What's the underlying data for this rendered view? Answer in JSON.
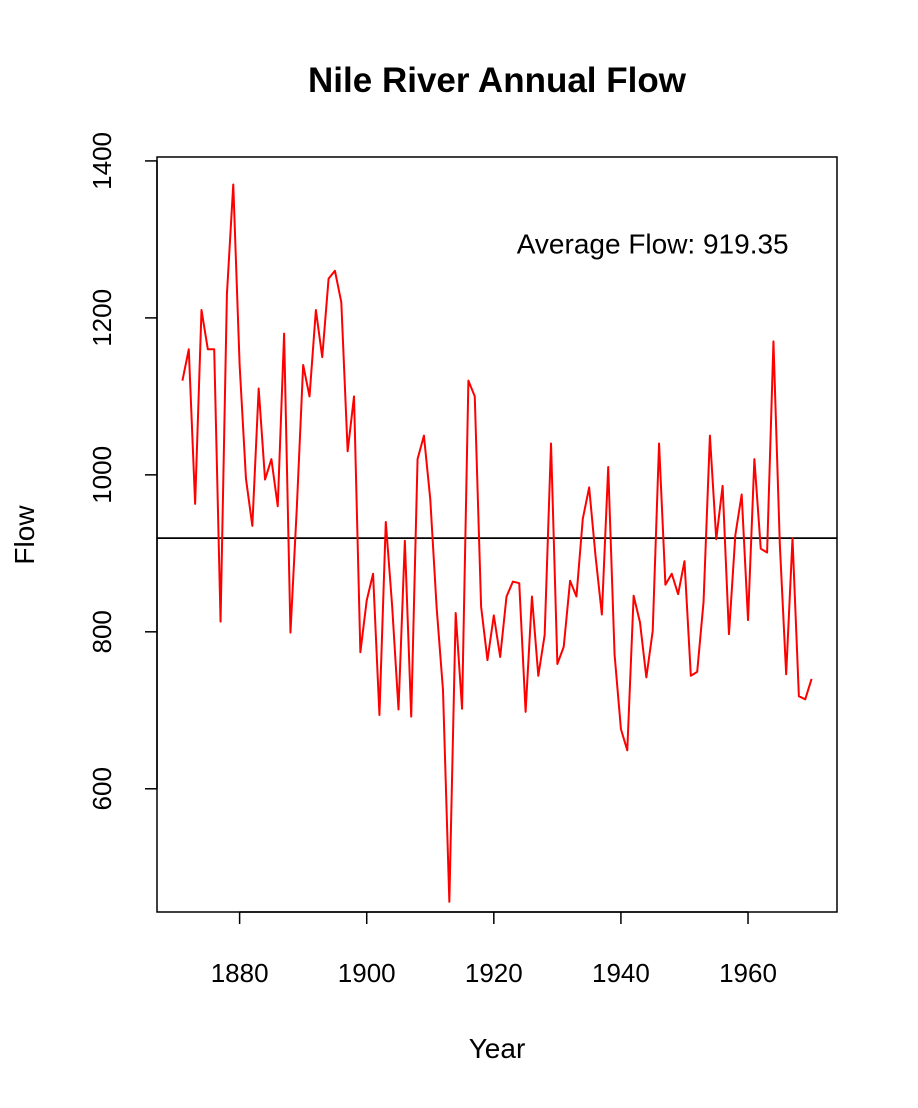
{
  "chart_data": {
    "type": "line",
    "title": "Nile River Annual Flow",
    "xlabel": "Year",
    "ylabel": "Flow",
    "xlim": [
      1867,
      1974
    ],
    "ylim": [
      443,
      1405
    ],
    "x_ticks": [
      1880,
      1900,
      1920,
      1940,
      1960
    ],
    "y_ticks": [
      600,
      800,
      1000,
      1200,
      1400
    ],
    "grid": false,
    "series_color": "#ff0000",
    "reference_line": {
      "y": 919.35,
      "color": "#000000"
    },
    "annotation": {
      "text": "Average Flow: 919.35",
      "x": 1945,
      "y": 1295
    },
    "series": [
      {
        "x": [
          1871,
          1872,
          1873,
          1874,
          1875,
          1876,
          1877,
          1878,
          1879,
          1880,
          1881,
          1882,
          1883,
          1884,
          1885,
          1886,
          1887,
          1888,
          1889,
          1890,
          1891,
          1892,
          1893,
          1894,
          1895,
          1896,
          1897,
          1898,
          1899,
          1900,
          1901,
          1902,
          1903,
          1904,
          1905,
          1906,
          1907,
          1908,
          1909,
          1910,
          1911,
          1912,
          1913,
          1914,
          1915,
          1916,
          1917,
          1918,
          1919,
          1920,
          1921,
          1922,
          1923,
          1924,
          1925,
          1926,
          1927,
          1928,
          1929,
          1930,
          1931,
          1932,
          1933,
          1934,
          1935,
          1936,
          1937,
          1938,
          1939,
          1940,
          1941,
          1942,
          1943,
          1944,
          1945,
          1946,
          1947,
          1948,
          1949,
          1950,
          1951,
          1952,
          1953,
          1954,
          1955,
          1956,
          1957,
          1958,
          1959,
          1960,
          1961,
          1962,
          1963,
          1964,
          1965,
          1966,
          1967,
          1968,
          1969,
          1970
        ],
        "values": [
          1120,
          1160,
          963,
          1210,
          1160,
          1160,
          813,
          1230,
          1370,
          1140,
          995,
          935,
          1110,
          994,
          1020,
          960,
          1180,
          799,
          958,
          1140,
          1100,
          1210,
          1150,
          1250,
          1260,
          1220,
          1030,
          1100,
          774,
          840,
          874,
          694,
          940,
          833,
          701,
          916,
          692,
          1020,
          1050,
          969,
          831,
          726,
          456,
          824,
          702,
          1120,
          1100,
          832,
          764,
          821,
          768,
          845,
          864,
          862,
          698,
          845,
          744,
          796,
          1040,
          759,
          781,
          865,
          845,
          944,
          984,
          897,
          822,
          1010,
          771,
          676,
          649,
          846,
          812,
          742,
          801,
          1040,
          860,
          874,
          848,
          890,
          744,
          749,
          838,
          1050,
          918,
          986,
          797,
          923,
          975,
          815,
          1020,
          906,
          901,
          1170,
          912,
          746,
          919,
          718,
          714,
          740
        ]
      }
    ]
  }
}
